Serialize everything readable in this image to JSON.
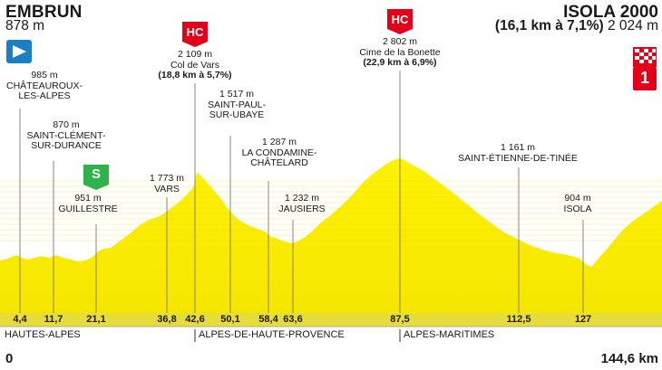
{
  "start": {
    "name": "EMBRUN",
    "altitude": "878 m"
  },
  "finish": {
    "name": "ISOLA 2000",
    "detail": "(16,1 km à 7,1%)",
    "altitude": "2 024 m",
    "badge_number": "1"
  },
  "waypoints": [
    {
      "altitude": "985 m",
      "name_line1": "CHÂTEAUROUX-",
      "name_line2": "LES-ALPES"
    },
    {
      "altitude": "870 m",
      "name_line1": "SAINT-CLÉMENT-",
      "name_line2": "SUR-DURANCE"
    },
    {
      "altitude": "951 m",
      "name_line1": "GUILLESTRE"
    },
    {
      "altitude": "1 773 m",
      "name_line1": "VARS"
    },
    {
      "altitude": "2 109 m",
      "name_line1": "Col de Vars",
      "detail": "(18,8 km à 5,7%)",
      "category": "HC"
    },
    {
      "altitude": "1 517 m",
      "name_line1": "SAINT-PAUL-",
      "name_line2": "SUR-UBAYE"
    },
    {
      "altitude": "1 287 m",
      "name_line1": "LA CONDAMINE-",
      "name_line2": "CHÂTELARD"
    },
    {
      "altitude": "1 232 m",
      "name_line1": "JAUSIERS"
    },
    {
      "altitude": "2 802 m",
      "name_line1": "Cime de la Bonette",
      "detail": "(22,9 km à 6,9%)",
      "category": "HC"
    },
    {
      "altitude": "1 161 m",
      "name_line1": "SAINT-ÉTIENNE-DE-TINÉE"
    },
    {
      "altitude": "904 m",
      "name_line1": "ISOLA"
    }
  ],
  "km_markers": [
    "4,4",
    "11,7",
    "21,1",
    "36,8",
    "42,6",
    "50,1",
    "58,4",
    "63,6",
    "87,5",
    "112,5",
    "127"
  ],
  "regions": [
    "HAUTES-ALPES",
    "ALPES-DE-HAUTE-PROVENCE",
    "ALPES-MARITIMES"
  ],
  "distance_start": "0",
  "distance_end": "144,6 km",
  "sprint_badge": "S",
  "colors": {
    "profile_yellow": "#fff200",
    "profile_yellow_dark": "#f2d900",
    "hc_red": "#e2001a",
    "sprint_green": "#2db34a",
    "start_blue": "#1b7fc4",
    "band": "#e3dc2f"
  }
}
